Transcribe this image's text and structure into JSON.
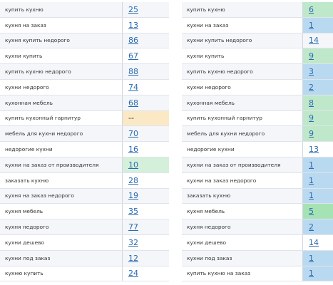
{
  "left_table": {
    "rows": [
      {
        "keyword": "купить кухню",
        "position": 25,
        "color": null
      },
      {
        "keyword": "кухня на заказ",
        "position": 13,
        "color": null
      },
      {
        "keyword": "кухня купить недорого",
        "position": 86,
        "color": null
      },
      {
        "keyword": "кухни купить",
        "position": 67,
        "color": null
      },
      {
        "keyword": "купить кухню недорого",
        "position": 88,
        "color": null
      },
      {
        "keyword": "кухни недорого",
        "position": 74,
        "color": null
      },
      {
        "keyword": "кухонная мебель",
        "position": 68,
        "color": null
      },
      {
        "keyword": "купить кухонный гарнитур",
        "position": "--",
        "color": "#fbe8c4"
      },
      {
        "keyword": "мебель для кухни недорого",
        "position": 70,
        "color": null
      },
      {
        "keyword": "недорогие кухни",
        "position": 16,
        "color": null
      },
      {
        "keyword": "кухни на заказ от производителя",
        "position": 10,
        "color": "#d5f0da"
      },
      {
        "keyword": "заказать кухню",
        "position": 28,
        "color": null
      },
      {
        "keyword": "кухня на заказ недорого",
        "position": 19,
        "color": null
      },
      {
        "keyword": "кухня мебель",
        "position": 35,
        "color": null
      },
      {
        "keyword": "кухня недорого",
        "position": 77,
        "color": null
      },
      {
        "keyword": "кухни дешево",
        "position": 32,
        "color": null
      },
      {
        "keyword": "кухни под заказ",
        "position": 12,
        "color": null
      },
      {
        "keyword": "кухню купить",
        "position": 24,
        "color": null
      }
    ]
  },
  "right_table": {
    "rows": [
      {
        "keyword": "купить кухню",
        "position": 6,
        "color": "#bfe8cb"
      },
      {
        "keyword": "кухни на заказ",
        "position": 1,
        "color": "#b9d9f0"
      },
      {
        "keyword": "кухни купить недорого",
        "position": 14,
        "color": null
      },
      {
        "keyword": "кухни купить",
        "position": 9,
        "color": "#bfe8cb"
      },
      {
        "keyword": "купить кухню недорого",
        "position": 3,
        "color": "#b9d9f0"
      },
      {
        "keyword": "кухни недорого",
        "position": 2,
        "color": "#b9d9f0"
      },
      {
        "keyword": "кухонная мебель",
        "position": 8,
        "color": "#bfe8cb"
      },
      {
        "keyword": "купить кухонный гарнитур",
        "position": 9,
        "color": "#bfe8cb"
      },
      {
        "keyword": "мебель для кухни недорого",
        "position": 9,
        "color": "#bfe8cb"
      },
      {
        "keyword": "недорогие кухни",
        "position": 13,
        "color": null
      },
      {
        "keyword": "кухни на заказ от производителя",
        "position": 1,
        "color": "#b9d9f0"
      },
      {
        "keyword": "кухни на заказ недорого",
        "position": 1,
        "color": "#b9d9f0"
      },
      {
        "keyword": "заказать кухню",
        "position": 1,
        "color": "#b9d9f0"
      },
      {
        "keyword": "кухня мебель",
        "position": 5,
        "color": "#a6e3b4"
      },
      {
        "keyword": "кухня недорого",
        "position": 2,
        "color": "#b9d9f0"
      },
      {
        "keyword": "кухни дешево",
        "position": 14,
        "color": null
      },
      {
        "keyword": "кухни под заказ",
        "position": 1,
        "color": "#b9d9f0"
      },
      {
        "keyword": "купить кухню на заказ",
        "position": 1,
        "color": "#b9d9f0"
      }
    ]
  }
}
